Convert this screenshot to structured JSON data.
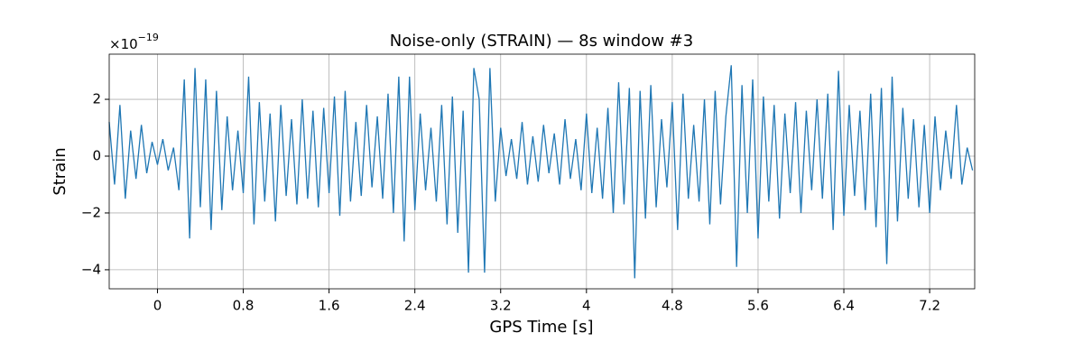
{
  "chart_data": {
    "type": "line",
    "title": "Noise-only (STRAIN) — 8s window #3",
    "x_label": "GPS Time [s]",
    "y_label": "Strain",
    "y_offset_base": "×10",
    "y_offset_exponent": "−19",
    "xlim": [
      -0.45,
      7.62
    ],
    "ylim": [
      -4.67,
      3.59
    ],
    "xticks": [
      0,
      0.8,
      1.6,
      2.4,
      3.2,
      4,
      4.8,
      5.6,
      6.4,
      7.2
    ],
    "yticks": [
      {
        "value": -4,
        "label": "−4"
      },
      {
        "value": -2,
        "label": "−2"
      },
      0,
      2
    ],
    "grid": true,
    "x": [
      -0.45,
      -0.4,
      -0.35,
      -0.3,
      -0.25,
      -0.2,
      -0.15,
      -0.1,
      -0.05,
      0,
      0.05,
      0.1,
      0.15,
      0.2,
      0.25,
      0.3,
      0.35,
      0.4,
      0.45,
      0.5,
      0.55,
      0.6,
      0.65,
      0.7,
      0.75,
      0.8,
      0.85,
      0.9,
      0.95,
      1,
      1.05,
      1.1,
      1.15,
      1.2,
      1.25,
      1.3,
      1.35,
      1.4,
      1.45,
      1.5,
      1.55,
      1.6,
      1.65,
      1.7,
      1.75,
      1.8,
      1.85,
      1.9,
      1.95,
      2,
      2.05,
      2.1,
      2.15,
      2.2,
      2.25,
      2.3,
      2.35,
      2.4,
      2.45,
      2.5,
      2.55,
      2.6,
      2.65,
      2.7,
      2.75,
      2.8,
      2.85,
      2.9,
      2.95,
      3,
      3.05,
      3.1,
      3.15,
      3.2,
      3.25,
      3.3,
      3.35,
      3.4,
      3.45,
      3.5,
      3.55,
      3.6,
      3.65,
      3.7,
      3.75,
      3.8,
      3.85,
      3.9,
      3.95,
      4,
      4.05,
      4.1,
      4.15,
      4.2,
      4.25,
      4.3,
      4.35,
      4.4,
      4.45,
      4.5,
      4.55,
      4.6,
      4.65,
      4.7,
      4.75,
      4.8,
      4.85,
      4.9,
      4.95,
      5,
      5.05,
      5.1,
      5.15,
      5.2,
      5.25,
      5.3,
      5.35,
      5.4,
      5.45,
      5.5,
      5.55,
      5.6,
      5.65,
      5.7,
      5.75,
      5.8,
      5.85,
      5.9,
      5.95,
      6,
      6.05,
      6.1,
      6.15,
      6.2,
      6.25,
      6.3,
      6.35,
      6.4,
      6.45,
      6.5,
      6.55,
      6.6,
      6.65,
      6.7,
      6.75,
      6.8,
      6.85,
      6.9,
      6.95,
      7,
      7.05,
      7.1,
      7.15,
      7.2,
      7.25,
      7.3,
      7.35,
      7.4,
      7.45,
      7.5,
      7.55,
      7.6
    ],
    "series": [
      {
        "color": "#1f77b4",
        "values": [
          1.2,
          -1.0,
          1.8,
          -1.5,
          0.9,
          -0.8,
          1.1,
          -0.6,
          0.5,
          -0.3,
          0.6,
          -0.5,
          0.3,
          -1.2,
          2.7,
          -2.9,
          3.1,
          -1.8,
          2.7,
          -2.6,
          2.3,
          -1.9,
          1.4,
          -1.2,
          0.9,
          -1.3,
          2.8,
          -2.4,
          1.9,
          -1.6,
          1.5,
          -2.3,
          1.8,
          -1.4,
          1.3,
          -1.7,
          2.0,
          -1.5,
          1.6,
          -1.8,
          1.7,
          -1.3,
          2.1,
          -2.1,
          2.3,
          -1.6,
          1.2,
          -1.4,
          1.8,
          -1.1,
          1.4,
          -1.5,
          2.2,
          -2.0,
          2.8,
          -3.0,
          2.8,
          -1.9,
          1.5,
          -1.2,
          1.0,
          -1.6,
          1.8,
          -2.4,
          2.1,
          -2.7,
          1.6,
          -4.1,
          3.1,
          2.0,
          -4.1,
          3.1,
          -1.6,
          1.0,
          -0.7,
          0.6,
          -0.8,
          1.2,
          -1.0,
          0.7,
          -0.9,
          1.1,
          -0.6,
          0.8,
          -1.0,
          1.3,
          -0.8,
          0.6,
          -1.2,
          1.5,
          -1.3,
          1.0,
          -1.5,
          1.7,
          -2.0,
          2.6,
          -1.7,
          2.4,
          -4.3,
          2.3,
          -2.2,
          2.5,
          -1.8,
          1.3,
          -1.1,
          1.9,
          -2.6,
          2.2,
          -1.5,
          1.1,
          -1.6,
          2.0,
          -2.4,
          2.3,
          -1.7,
          1.4,
          3.2,
          -3.9,
          2.5,
          -2.0,
          2.7,
          -2.9,
          2.1,
          -1.6,
          1.8,
          -2.2,
          1.5,
          -1.3,
          1.9,
          -2.0,
          1.6,
          -1.2,
          2.0,
          -1.5,
          2.2,
          -2.6,
          3.0,
          -2.1,
          1.8,
          -1.4,
          1.6,
          -1.9,
          2.2,
          -2.5,
          2.4,
          -3.8,
          2.8,
          -2.3,
          1.7,
          -1.5,
          1.3,
          -1.8,
          1.1,
          -2.0,
          1.4,
          -1.2,
          0.9,
          -0.8,
          1.8,
          -1.0,
          0.3,
          -0.5
        ]
      }
    ]
  }
}
